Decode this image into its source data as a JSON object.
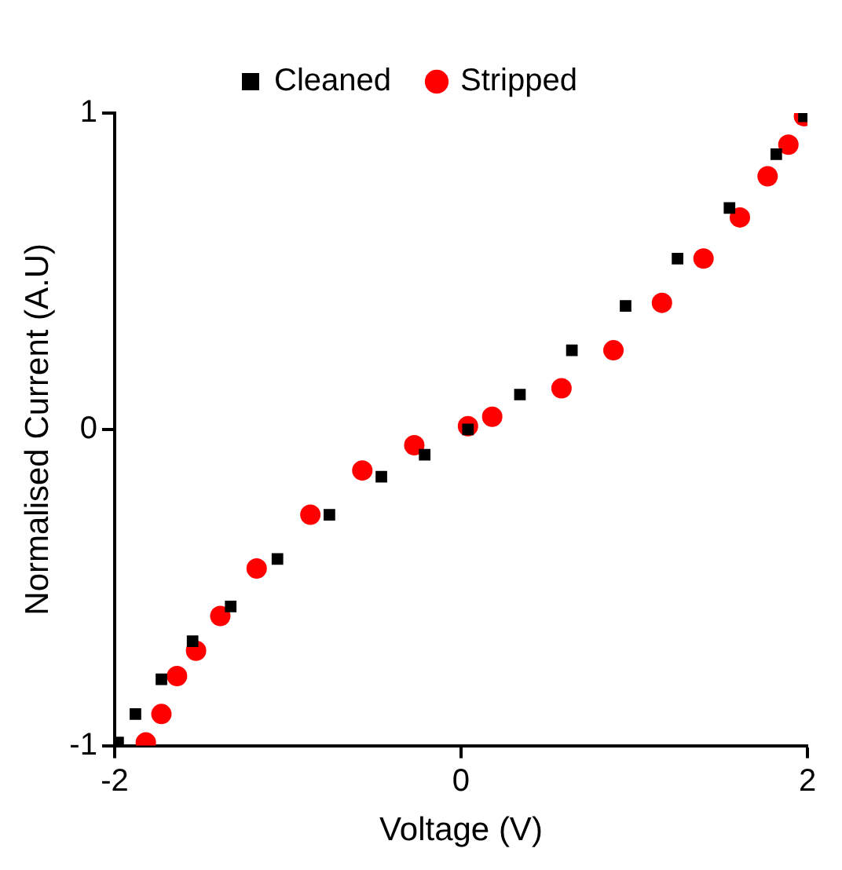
{
  "chart_data": {
    "type": "scatter",
    "xlabel": "Voltage (V)",
    "ylabel": "Normalised Current (A.U)",
    "xlim": [
      -2,
      2
    ],
    "ylim": [
      -1,
      1
    ],
    "xticks": [
      -2,
      0,
      2
    ],
    "yticks": [
      -1,
      0,
      1
    ],
    "grid": false,
    "legend": "top",
    "series": [
      {
        "name": "Cleaned",
        "color": "#000000",
        "marker": "square",
        "x": [
          -1.98,
          -1.88,
          -1.73,
          -1.55,
          -1.33,
          -1.06,
          -0.76,
          -0.46,
          -0.21,
          0.04,
          0.34,
          0.64,
          0.95,
          1.25,
          1.55,
          1.82,
          1.98
        ],
        "values": [
          -0.99,
          -0.9,
          -0.79,
          -0.67,
          -0.56,
          -0.41,
          -0.27,
          -0.15,
          -0.08,
          0.0,
          0.11,
          0.25,
          0.39,
          0.54,
          0.7,
          0.87,
          0.99
        ]
      },
      {
        "name": "Stripped",
        "color": "#ff0000",
        "marker": "circle",
        "x": [
          -1.82,
          -1.73,
          -1.64,
          -1.53,
          -1.39,
          -1.18,
          -0.87,
          -0.57,
          -0.27,
          0.04,
          0.18,
          0.58,
          0.88,
          1.16,
          1.4,
          1.61,
          1.77,
          1.89,
          1.98
        ],
        "values": [
          -0.99,
          -0.9,
          -0.78,
          -0.7,
          -0.59,
          -0.44,
          -0.27,
          -0.13,
          -0.05,
          0.01,
          0.04,
          0.13,
          0.25,
          0.4,
          0.54,
          0.67,
          0.8,
          0.9,
          0.99
        ]
      }
    ]
  }
}
